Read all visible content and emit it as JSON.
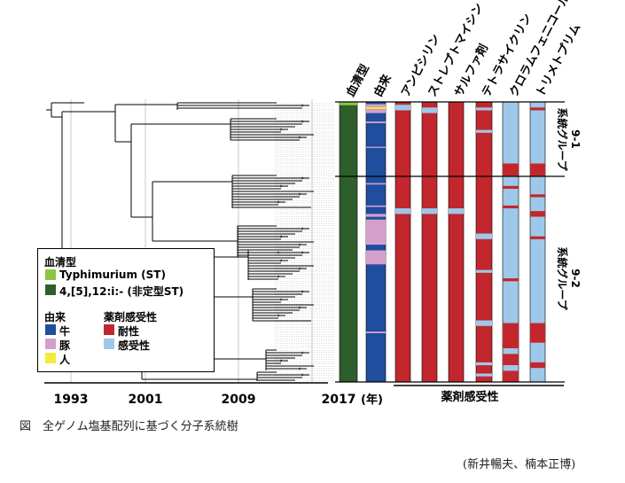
{
  "headers": [
    "血清型",
    "由来",
    "アンピシリン",
    "ストレプトマイシン",
    "サルファ剤",
    "テトラサイクリン",
    "クロラムフェニコール",
    "トリメトプリム"
  ],
  "axis": {
    "ticks": [
      "1993",
      "2001",
      "2009",
      "2017"
    ],
    "unit": "(年)"
  },
  "resistance_label": "薬剤感受性",
  "groups": [
    {
      "label_line1": "系統グループ",
      "label_line2": "9-1"
    },
    {
      "label_line1": "系統グループ",
      "label_line2": "9-2"
    }
  ],
  "legend": {
    "serotype_title": "血清型",
    "serotypes": [
      {
        "label": "Typhimurium (ST)",
        "color": "#8cc63f"
      },
      {
        "label": "4,[5],12:i:- (非定型ST)",
        "color": "#2e5e2c"
      }
    ],
    "origin_title": "由来",
    "origins": [
      {
        "label": "牛",
        "color": "#1f4e9e"
      },
      {
        "label": "豚",
        "color": "#d59fcb"
      },
      {
        "label": "人",
        "color": "#f2ea3c"
      }
    ],
    "susceptibility_title": "薬剤感受性",
    "susceptibility": [
      {
        "label": "耐性",
        "color": "#c1272d"
      },
      {
        "label": "感受性",
        "color": "#9ec8ea"
      }
    ]
  },
  "caption": "図　全ゲノム塩基配列に基づく分子系統樹",
  "credit": "(新井暢夫、楠本正博)"
}
